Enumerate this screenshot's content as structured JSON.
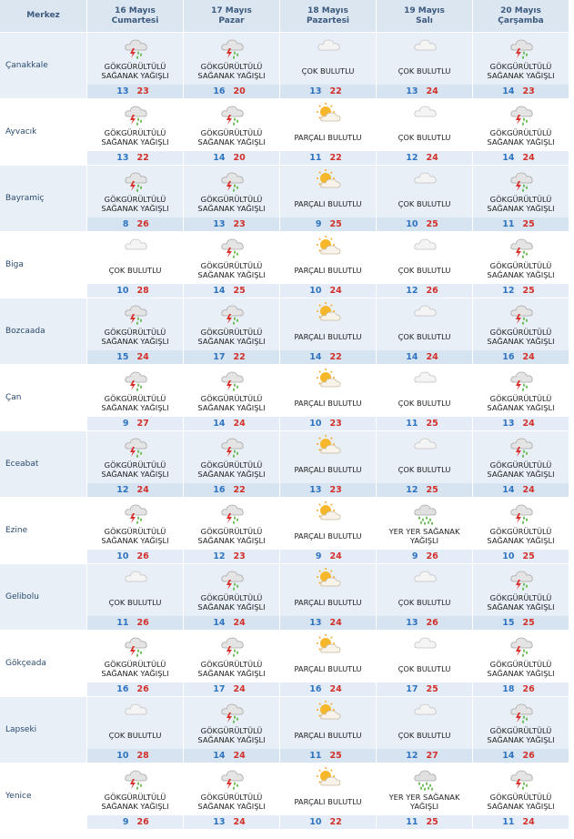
{
  "header": {
    "first": "Merkez",
    "days": [
      {
        "date": "16 Mayıs",
        "weekday": "Cumartesi"
      },
      {
        "date": "17 Mayıs",
        "weekday": "Pazar"
      },
      {
        "date": "18 Mayıs",
        "weekday": "Pazartesi"
      },
      {
        "date": "19 Mayıs",
        "weekday": "Salı"
      },
      {
        "date": "20 Mayıs",
        "weekday": "Çarşamba"
      }
    ]
  },
  "rows": [
    {
      "name": "Çanakkale",
      "days": [
        {
          "condition": "GÖKGÜRÜLTÜLÜ SAĞANAK YAĞIŞLI",
          "low": 13,
          "high": 23
        },
        {
          "condition": "GÖKGÜRÜLTÜLÜ SAĞANAK YAĞIŞLI",
          "low": 16,
          "high": 20
        },
        {
          "condition": "ÇOK BULUTLU",
          "low": 13,
          "high": 22
        },
        {
          "condition": "ÇOK BULUTLU",
          "low": 13,
          "high": 24
        },
        {
          "condition": "GÖKGÜRÜLTÜLÜ SAĞANAK YAĞIŞLI",
          "low": 14,
          "high": 23
        }
      ]
    },
    {
      "name": "Ayvacık",
      "days": [
        {
          "condition": "GÖKGÜRÜLTÜLÜ SAĞANAK YAĞIŞLI",
          "low": 13,
          "high": 22
        },
        {
          "condition": "GÖKGÜRÜLTÜLÜ SAĞANAK YAĞIŞLI",
          "low": 14,
          "high": 20
        },
        {
          "condition": "PARÇALI BULUTLU",
          "low": 11,
          "high": 22
        },
        {
          "condition": "ÇOK BULUTLU",
          "low": 12,
          "high": 24
        },
        {
          "condition": "GÖKGÜRÜLTÜLÜ SAĞANAK YAĞIŞLI",
          "low": 14,
          "high": 24
        }
      ]
    },
    {
      "name": "Bayramiç",
      "days": [
        {
          "condition": "GÖKGÜRÜLTÜLÜ SAĞANAK YAĞIŞLI",
          "low": 8,
          "high": 26
        },
        {
          "condition": "GÖKGÜRÜLTÜLÜ SAĞANAK YAĞIŞLI",
          "low": 13,
          "high": 23
        },
        {
          "condition": "PARÇALI BULUTLU",
          "low": 9,
          "high": 25
        },
        {
          "condition": "ÇOK BULUTLU",
          "low": 10,
          "high": 25
        },
        {
          "condition": "GÖKGÜRÜLTÜLÜ SAĞANAK YAĞIŞLI",
          "low": 11,
          "high": 25
        }
      ]
    },
    {
      "name": "Biga",
      "days": [
        {
          "condition": "ÇOK BULUTLU",
          "low": 10,
          "high": 28
        },
        {
          "condition": "GÖKGÜRÜLTÜLÜ SAĞANAK YAĞIŞLI",
          "low": 14,
          "high": 25
        },
        {
          "condition": "PARÇALI BULUTLU",
          "low": 10,
          "high": 24
        },
        {
          "condition": "ÇOK BULUTLU",
          "low": 12,
          "high": 26
        },
        {
          "condition": "GÖKGÜRÜLTÜLÜ SAĞANAK YAĞIŞLI",
          "low": 12,
          "high": 25
        }
      ]
    },
    {
      "name": "Bozcaada",
      "days": [
        {
          "condition": "GÖKGÜRÜLTÜLÜ SAĞANAK YAĞIŞLI",
          "low": 15,
          "high": 24
        },
        {
          "condition": "GÖKGÜRÜLTÜLÜ SAĞANAK YAĞIŞLI",
          "low": 17,
          "high": 22
        },
        {
          "condition": "PARÇALI BULUTLU",
          "low": 14,
          "high": 22
        },
        {
          "condition": "ÇOK BULUTLU",
          "low": 14,
          "high": 24
        },
        {
          "condition": "GÖKGÜRÜLTÜLÜ SAĞANAK YAĞIŞLI",
          "low": 16,
          "high": 24
        }
      ]
    },
    {
      "name": "Çan",
      "days": [
        {
          "condition": "GÖKGÜRÜLTÜLÜ SAĞANAK YAĞIŞLI",
          "low": 9,
          "high": 27
        },
        {
          "condition": "GÖKGÜRÜLTÜLÜ SAĞANAK YAĞIŞLI",
          "low": 14,
          "high": 24
        },
        {
          "condition": "PARÇALI BULUTLU",
          "low": 10,
          "high": 23
        },
        {
          "condition": "ÇOK BULUTLU",
          "low": 11,
          "high": 25
        },
        {
          "condition": "GÖKGÜRÜLTÜLÜ SAĞANAK YAĞIŞLI",
          "low": 13,
          "high": 24
        }
      ]
    },
    {
      "name": "Eceabat",
      "days": [
        {
          "condition": "GÖKGÜRÜLTÜLÜ SAĞANAK YAĞIŞLI",
          "low": 12,
          "high": 24
        },
        {
          "condition": "GÖKGÜRÜLTÜLÜ SAĞANAK YAĞIŞLI",
          "low": 16,
          "high": 22
        },
        {
          "condition": "PARÇALI BULUTLU",
          "low": 13,
          "high": 23
        },
        {
          "condition": "ÇOK BULUTLU",
          "low": 12,
          "high": 25
        },
        {
          "condition": "GÖKGÜRÜLTÜLÜ SAĞANAK YAĞIŞLI",
          "low": 14,
          "high": 24
        }
      ]
    },
    {
      "name": "Ezine",
      "days": [
        {
          "condition": "GÖKGÜRÜLTÜLÜ SAĞANAK YAĞIŞLI",
          "low": 10,
          "high": 26
        },
        {
          "condition": "GÖKGÜRÜLTÜLÜ SAĞANAK YAĞIŞLI",
          "low": 12,
          "high": 23
        },
        {
          "condition": "PARÇALI BULUTLU",
          "low": 9,
          "high": 24
        },
        {
          "condition": "YER YER SAĞANAK YAĞIŞLI",
          "low": 9,
          "high": 26
        },
        {
          "condition": "GÖKGÜRÜLTÜLÜ SAĞANAK YAĞIŞLI",
          "low": 10,
          "high": 25
        }
      ]
    },
    {
      "name": "Gelibolu",
      "days": [
        {
          "condition": "ÇOK BULUTLU",
          "low": 11,
          "high": 26
        },
        {
          "condition": "GÖKGÜRÜLTÜLÜ SAĞANAK YAĞIŞLI",
          "low": 14,
          "high": 24
        },
        {
          "condition": "PARÇALI BULUTLU",
          "low": 13,
          "high": 24
        },
        {
          "condition": "ÇOK BULUTLU",
          "low": 13,
          "high": 26
        },
        {
          "condition": "GÖKGÜRÜLTÜLÜ SAĞANAK YAĞIŞLI",
          "low": 15,
          "high": 25
        }
      ]
    },
    {
      "name": "Gökçeada",
      "days": [
        {
          "condition": "GÖKGÜRÜLTÜLÜ SAĞANAK YAĞIŞLI",
          "low": 16,
          "high": 26
        },
        {
          "condition": "GÖKGÜRÜLTÜLÜ SAĞANAK YAĞIŞLI",
          "low": 17,
          "high": 24
        },
        {
          "condition": "PARÇALI BULUTLU",
          "low": 16,
          "high": 24
        },
        {
          "condition": "ÇOK BULUTLU",
          "low": 17,
          "high": 25
        },
        {
          "condition": "GÖKGÜRÜLTÜLÜ SAĞANAK YAĞIŞLI",
          "low": 18,
          "high": 26
        }
      ]
    },
    {
      "name": "Lapseki",
      "days": [
        {
          "condition": "ÇOK BULUTLU",
          "low": 10,
          "high": 28
        },
        {
          "condition": "GÖKGÜRÜLTÜLÜ SAĞANAK YAĞIŞLI",
          "low": 14,
          "high": 24
        },
        {
          "condition": "PARÇALI BULUTLU",
          "low": 11,
          "high": 25
        },
        {
          "condition": "ÇOK BULUTLU",
          "low": 12,
          "high": 27
        },
        {
          "condition": "GÖKGÜRÜLTÜLÜ SAĞANAK YAĞIŞLI",
          "low": 14,
          "high": 26
        }
      ]
    },
    {
      "name": "Yenice",
      "days": [
        {
          "condition": "GÖKGÜRÜLTÜLÜ SAĞANAK YAĞIŞLI",
          "low": 9,
          "high": 26
        },
        {
          "condition": "GÖKGÜRÜLTÜLÜ SAĞANAK YAĞIŞLI",
          "low": 13,
          "high": 24
        },
        {
          "condition": "PARÇALI BULUTLU",
          "low": 10,
          "high": 22
        },
        {
          "condition": "YER YER SAĞANAK YAĞIŞLI",
          "low": 11,
          "high": 25
        },
        {
          "condition": "GÖKGÜRÜLTÜLÜ SAĞANAK YAĞIŞLI",
          "low": 11,
          "high": 24
        }
      ]
    }
  ]
}
